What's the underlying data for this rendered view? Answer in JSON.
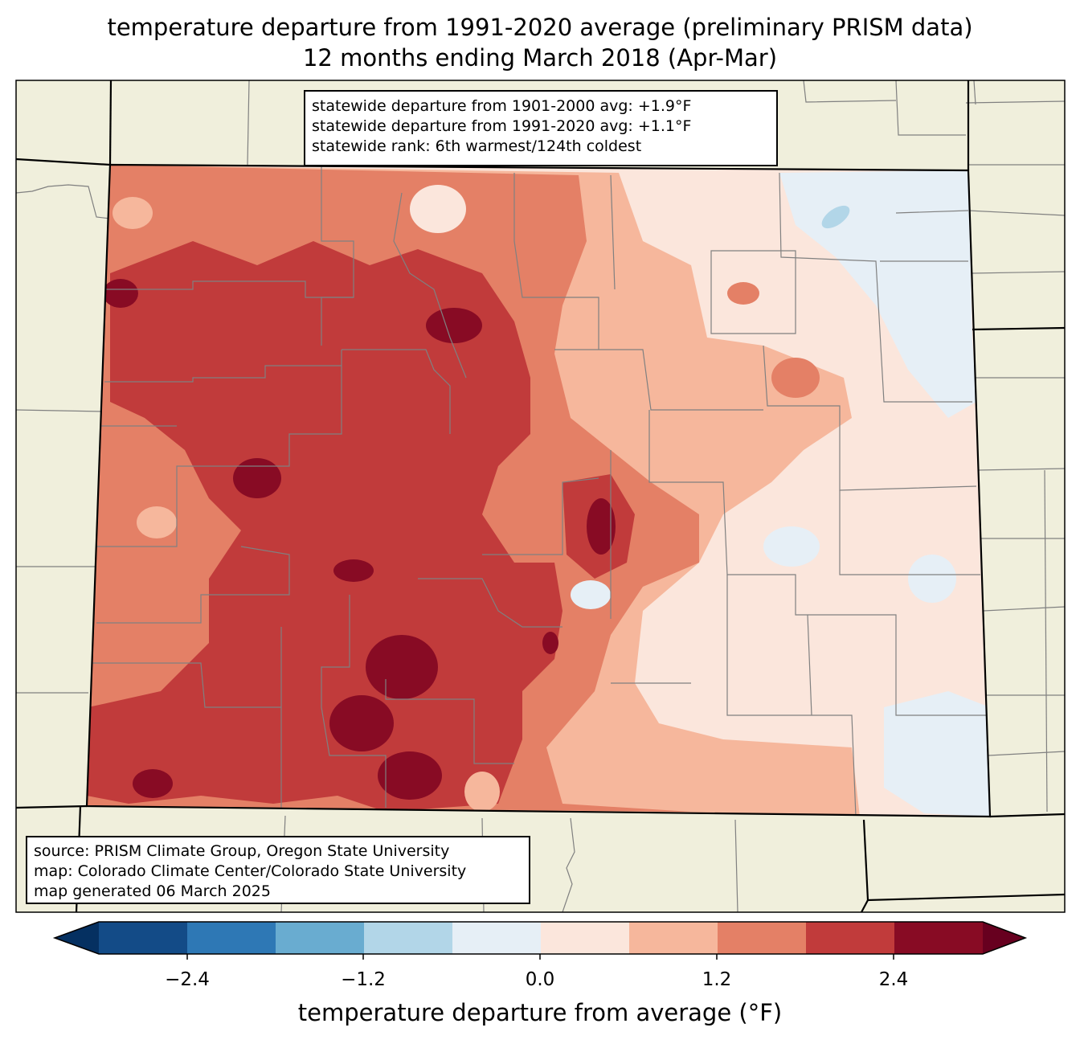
{
  "title": {
    "line1": "temperature departure from 1991-2020 average (preliminary PRISM data)",
    "line2": "12 months ending March 2018 (Apr-Mar)"
  },
  "stats": {
    "line1": "statewide departure from 1901-2000 avg: +1.9°F",
    "line2": "statewide departure from 1991-2020 avg: +1.1°F",
    "line3": "statewide rank: 6th warmest/124th coldest"
  },
  "source": {
    "line1": "source: PRISM Climate Group, Oregon State University",
    "line2": "map: Colorado Climate Center/Colorado State University",
    "line3": "map generated 06 March 2025"
  },
  "colorbar": {
    "label": "temperature departure from average (°F)",
    "ticks": [
      "−2.4",
      "−1.2",
      "0.0",
      "1.2",
      "2.4"
    ],
    "colors": [
      "#053061",
      "#134b87",
      "#2e78b5",
      "#69acd0",
      "#b2d6e8",
      "#e6eff6",
      "#fbe6dc",
      "#f6b79c",
      "#e48066",
      "#c13b3b",
      "#880b24",
      "#67001f"
    ]
  },
  "map_colors": {
    "background": "#f0efdc",
    "county_lines": "#808080",
    "state_lines": "#000000"
  }
}
